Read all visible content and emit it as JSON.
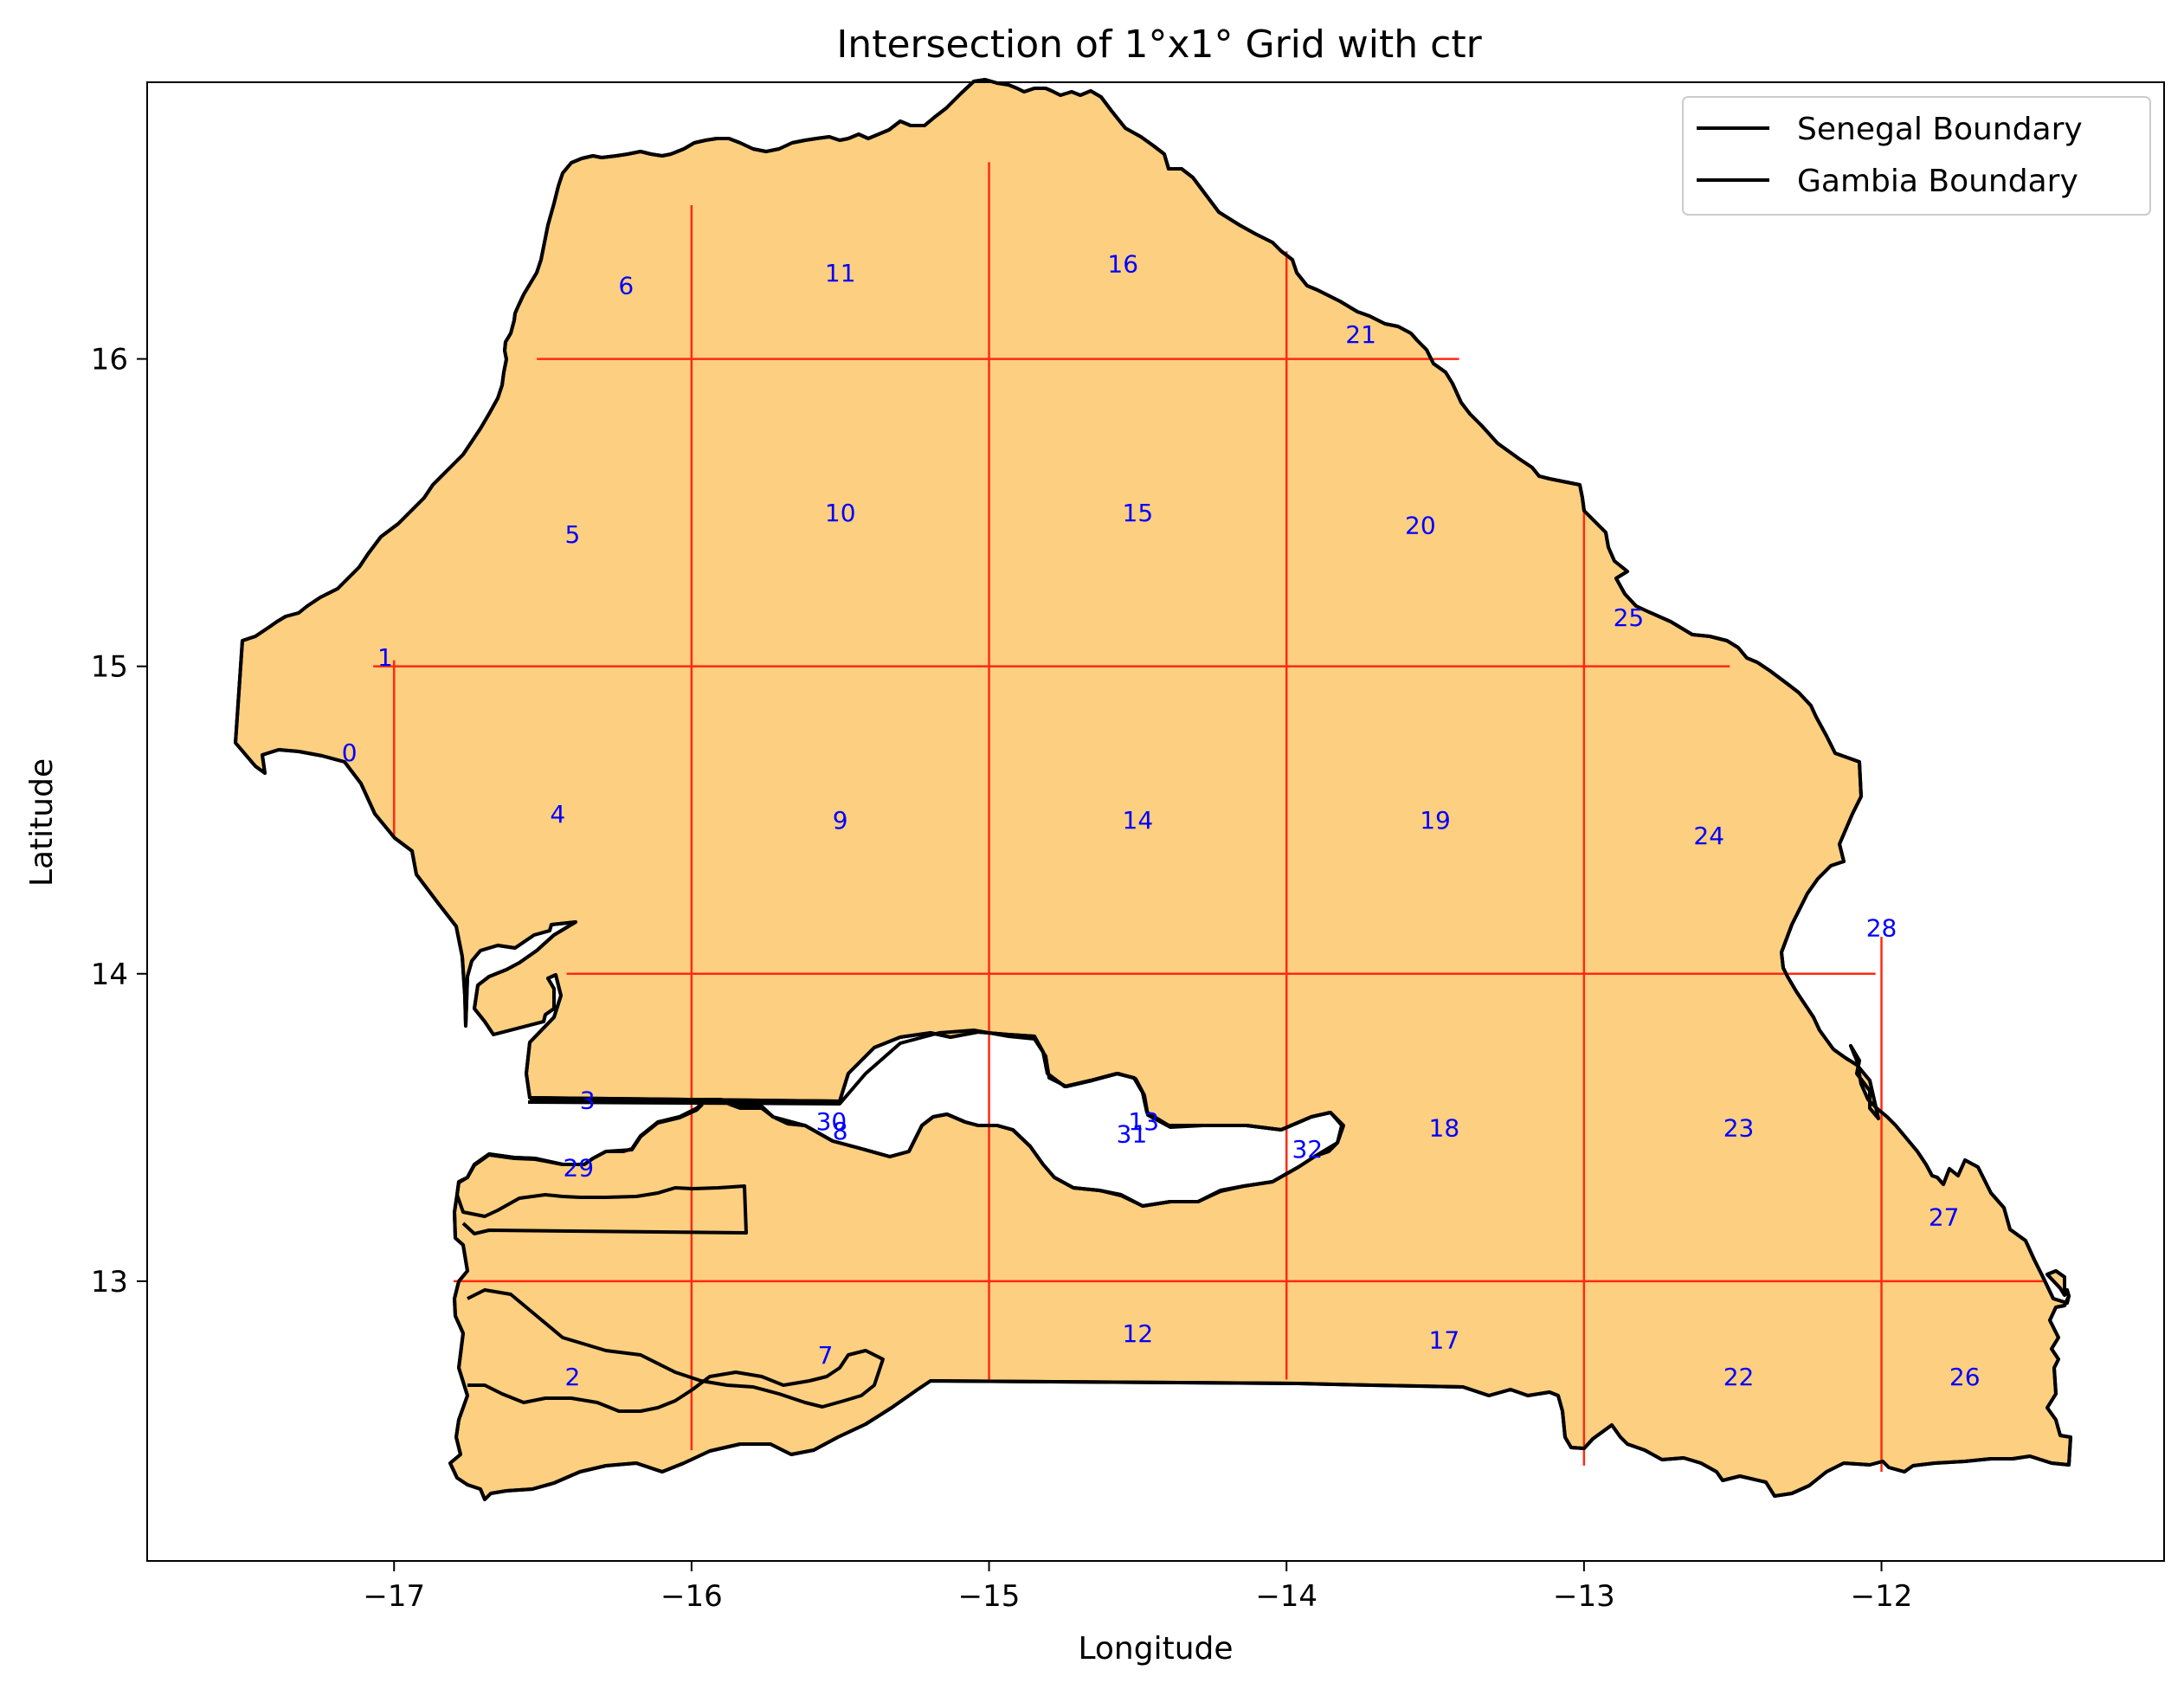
{
  "title": "Intersection of 1°x1° Grid with ctr",
  "x_label": "Longitude",
  "y_label": "Latitude",
  "legend": [
    {
      "label": "Senegal Boundary",
      "color": "#000000"
    },
    {
      "label": "Gambia Boundary",
      "color": "#000000"
    }
  ],
  "colors": {
    "fill": "#fdcf81",
    "grid": "#ff2a10",
    "label": "#0000ff",
    "boundary": "#000000"
  },
  "chart_data": {
    "type": "map",
    "xlim": [
      -17.83,
      -11.05
    ],
    "ylim": [
      12.09,
      16.9
    ],
    "x_ticks": [
      -17,
      -16,
      -15,
      -14,
      -13,
      -12
    ],
    "x_tick_labels": [
      "−17",
      "−16",
      "−15",
      "−14",
      "−13",
      "−12"
    ],
    "y_ticks": [
      13,
      14,
      15,
      16
    ],
    "y_tick_labels": [
      "13",
      "14",
      "15",
      "16"
    ],
    "grid_vertical": [
      {
        "x": -17,
        "y": [
          14.45,
          15.02
        ]
      },
      {
        "x": -16,
        "y": [
          12.45,
          16.5
        ]
      },
      {
        "x": -15,
        "y": [
          12.68,
          16.64
        ]
      },
      {
        "x": -14,
        "y": [
          12.68,
          16.35
        ]
      },
      {
        "x": -13,
        "y": [
          12.4,
          15.5
        ]
      },
      {
        "x": -12,
        "y": [
          12.38,
          14.12
        ]
      }
    ],
    "grid_horizontal": [
      {
        "y": 16,
        "x": [
          -16.52,
          -13.42
        ]
      },
      {
        "y": 15,
        "x": [
          -17.07,
          -12.51
        ]
      },
      {
        "y": 14,
        "x": [
          -16.42,
          -12.02
        ]
      },
      {
        "y": 13,
        "x": [
          -16.8,
          -11.45
        ]
      }
    ],
    "cells": [
      {
        "id": "0",
        "lon": -17.15,
        "lat": 14.72
      },
      {
        "id": "1",
        "lon": -17.03,
        "lat": 15.03
      },
      {
        "id": "2",
        "lon": -16.4,
        "lat": 12.69
      },
      {
        "id": "3",
        "lon": -16.35,
        "lat": 13.59
      },
      {
        "id": "4",
        "lon": -16.45,
        "lat": 14.52
      },
      {
        "id": "5",
        "lon": -16.4,
        "lat": 15.43
      },
      {
        "id": "6",
        "lon": -16.22,
        "lat": 16.24
      },
      {
        "id": "7",
        "lon": -15.55,
        "lat": 12.76
      },
      {
        "id": "8",
        "lon": -15.5,
        "lat": 13.49
      },
      {
        "id": "9",
        "lon": -15.5,
        "lat": 14.5
      },
      {
        "id": "10",
        "lon": -15.5,
        "lat": 15.5
      },
      {
        "id": "11",
        "lon": -15.5,
        "lat": 16.28
      },
      {
        "id": "12",
        "lon": -14.5,
        "lat": 12.83
      },
      {
        "id": "13",
        "lon": -14.48,
        "lat": 13.52
      },
      {
        "id": "14",
        "lon": -14.5,
        "lat": 14.5
      },
      {
        "id": "15",
        "lon": -14.5,
        "lat": 15.5
      },
      {
        "id": "16",
        "lon": -14.55,
        "lat": 16.31
      },
      {
        "id": "17",
        "lon": -13.47,
        "lat": 12.81
      },
      {
        "id": "18",
        "lon": -13.47,
        "lat": 13.5
      },
      {
        "id": "19",
        "lon": -13.5,
        "lat": 14.5
      },
      {
        "id": "20",
        "lon": -13.55,
        "lat": 15.46
      },
      {
        "id": "21",
        "lon": -13.75,
        "lat": 16.08
      },
      {
        "id": "22",
        "lon": -12.48,
        "lat": 12.69
      },
      {
        "id": "23",
        "lon": -12.48,
        "lat": 13.5
      },
      {
        "id": "24",
        "lon": -12.58,
        "lat": 14.45
      },
      {
        "id": "25",
        "lon": -12.85,
        "lat": 15.16
      },
      {
        "id": "26",
        "lon": -11.72,
        "lat": 12.69
      },
      {
        "id": "27",
        "lon": -11.79,
        "lat": 13.21
      },
      {
        "id": "28",
        "lon": -12.0,
        "lat": 14.15
      },
      {
        "id": "29",
        "lon": -16.38,
        "lat": 13.37
      },
      {
        "id": "30",
        "lon": -15.53,
        "lat": 13.52
      },
      {
        "id": "31",
        "lon": -14.52,
        "lat": 13.48
      },
      {
        "id": "32",
        "lon": -13.93,
        "lat": 13.43
      }
    ]
  }
}
